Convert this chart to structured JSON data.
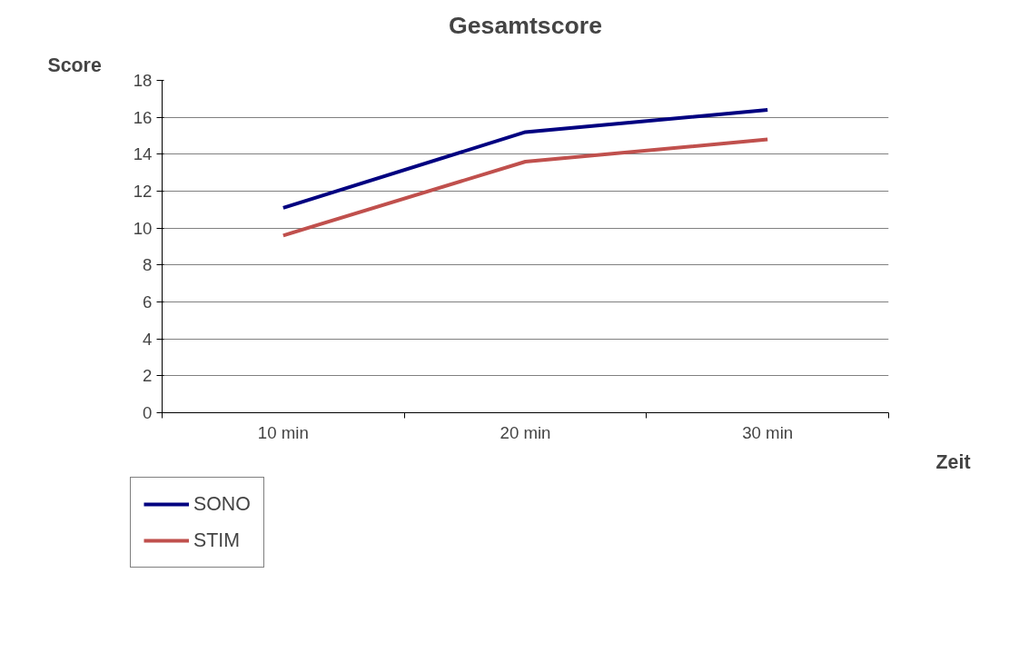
{
  "chart_data": {
    "type": "line",
    "title": "Gesamtscore",
    "ylabel": "Score",
    "xlabel": "Zeit",
    "categories": [
      "10 min",
      "20 min",
      "30 min"
    ],
    "series": [
      {
        "name": "SONO",
        "color": "#000080",
        "values": [
          11.1,
          15.2,
          16.4
        ]
      },
      {
        "name": "STIM",
        "color": "#c0504d",
        "values": [
          9.6,
          13.6,
          14.8
        ]
      }
    ],
    "ylim": [
      0,
      18
    ],
    "yticks": [
      0,
      2,
      4,
      6,
      8,
      10,
      12,
      14,
      16,
      18
    ],
    "grid": "y",
    "legend": "bottom left",
    "marker": "none",
    "line_style": "solid"
  }
}
